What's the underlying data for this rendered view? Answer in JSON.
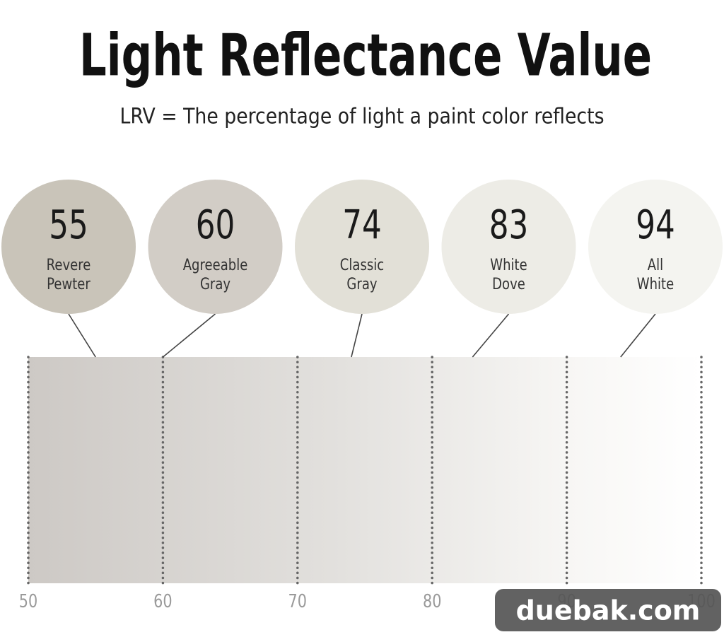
{
  "chart_data": {
    "type": "lrv-scale",
    "title": "Light Reflectance Value",
    "subtitle": "LRV = The percentage of light a paint color reflects",
    "values": [
      55,
      60,
      74,
      83,
      94
    ],
    "labels": [
      [
        "Revere",
        "Pewter"
      ],
      [
        "Agreeable",
        "Gray"
      ],
      [
        "Classic",
        "Gray"
      ],
      [
        "White",
        "Dove"
      ],
      [
        "All",
        "White"
      ]
    ],
    "colors": [
      "#c9c4b9",
      "#d2cdc6",
      "#e2e0d7",
      "#edece6",
      "#f4f4f0"
    ],
    "xlim": [
      50,
      100
    ],
    "xticks": [
      50,
      60,
      70,
      80,
      90,
      100
    ],
    "watermark": "duebak.com"
  }
}
